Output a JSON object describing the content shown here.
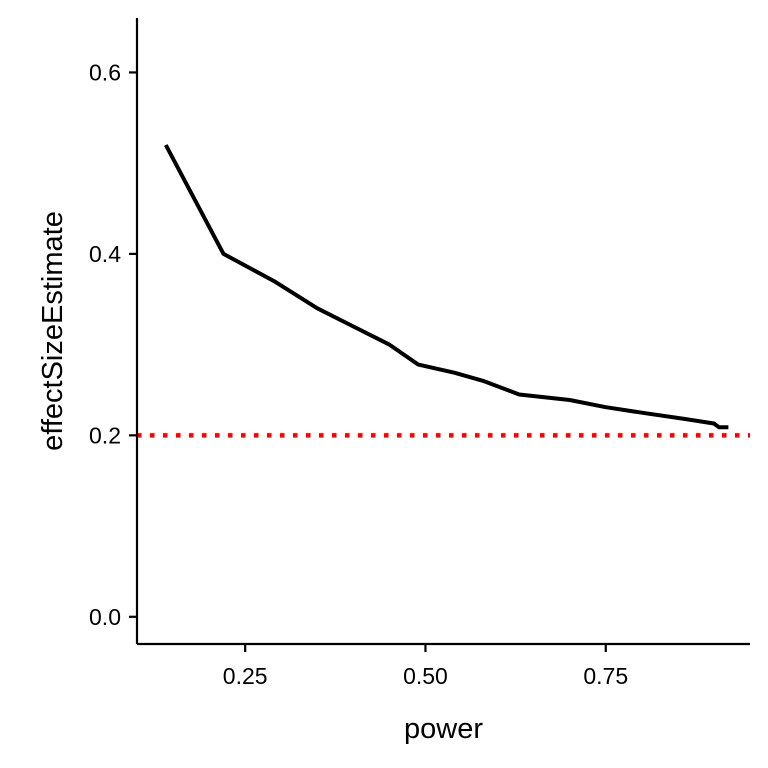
{
  "chart_data": {
    "type": "line",
    "xlabel": "power",
    "ylabel": "effectSizeEstimate",
    "xlim": [
      0.1,
      0.95
    ],
    "ylim": [
      -0.03,
      0.66
    ],
    "xticks": [
      0.25,
      0.5,
      0.75
    ],
    "xtick_labels": [
      "0.25",
      "0.50",
      "0.75"
    ],
    "yticks": [
      0.0,
      0.2,
      0.4,
      0.6
    ],
    "ytick_labels": [
      "0.0",
      "0.2",
      "0.4",
      "0.6"
    ],
    "grid": false,
    "series": [
      {
        "color": "#000000",
        "x": [
          0.14,
          0.22,
          0.29,
          0.35,
          0.4,
          0.45,
          0.49,
          0.54,
          0.58,
          0.63,
          0.7,
          0.75,
          0.8,
          0.86,
          0.9,
          0.907,
          0.92
        ],
        "y": [
          0.52,
          0.4,
          0.37,
          0.34,
          0.32,
          0.3,
          0.278,
          0.269,
          0.26,
          0.245,
          0.239,
          0.231,
          0.225,
          0.218,
          0.213,
          0.209,
          0.209
        ]
      }
    ],
    "reference_line": {
      "y": 0.2,
      "color": "#ff0000",
      "style": "dotted"
    }
  }
}
